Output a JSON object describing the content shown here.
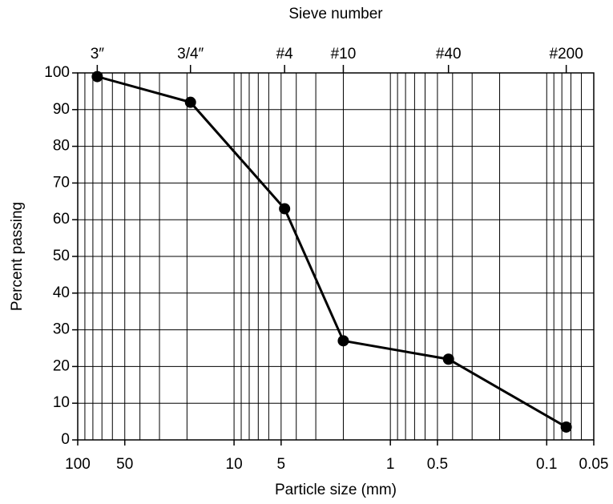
{
  "chart_data": {
    "type": "line",
    "title": "Sieve number",
    "xlabel": "Particle size (mm)",
    "ylabel": "Percent passing",
    "x": [
      75,
      19,
      4.75,
      2,
      0.425,
      0.075
    ],
    "values": [
      99,
      92,
      63,
      27,
      22,
      3.5
    ],
    "color": "#000000",
    "xscale": "log",
    "xlim": [
      100,
      0.05
    ],
    "xticks": [
      100,
      50,
      10,
      5,
      1,
      0.5,
      0.1,
      0.05
    ],
    "x2ticks": [
      {
        "value": 75,
        "label": "3″"
      },
      {
        "value": 19,
        "label": "3/4″"
      },
      {
        "value": 4.75,
        "label": "#4"
      },
      {
        "value": 2,
        "label": "#10"
      },
      {
        "value": 0.425,
        "label": "#40"
      },
      {
        "value": 0.075,
        "label": "#200"
      }
    ],
    "ylim": [
      0,
      100
    ],
    "yticks": [
      0,
      10,
      20,
      30,
      40,
      50,
      60,
      70,
      80,
      90,
      100
    ],
    "grid": true
  }
}
